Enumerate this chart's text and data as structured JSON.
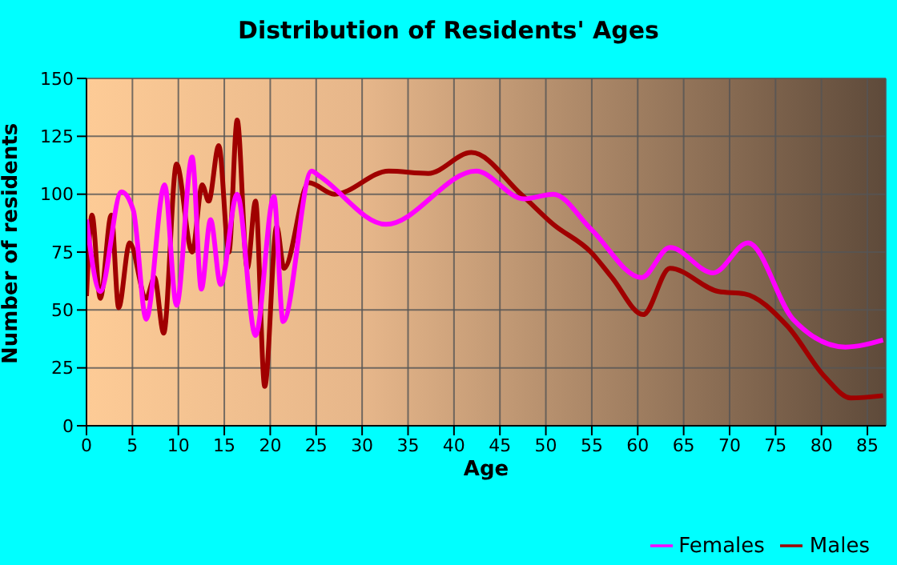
{
  "chart_data": {
    "type": "line",
    "title": "Distribution of Residents' Ages",
    "xlabel": "Age",
    "ylabel": "Number of residents",
    "xlim": [
      0,
      87
    ],
    "xticks": [
      0,
      5,
      10,
      15,
      20,
      25,
      30,
      35,
      40,
      45,
      50,
      55,
      60,
      65,
      70,
      75,
      80,
      85
    ],
    "ylim": [
      0,
      150
    ],
    "yticks": [
      0,
      25,
      50,
      75,
      100,
      125,
      150
    ],
    "grid": true,
    "legend": "bottom right",
    "marker": "none",
    "line_style": "solid",
    "series": [
      {
        "name": "Males",
        "color": "#a00000",
        "x": [
          0,
          0.6,
          1.5,
          2.7,
          3.5,
          4.7,
          6.5,
          7.4,
          8.4,
          9.8,
          11.5,
          12.6,
          13.3,
          14.4,
          15.5,
          16.4,
          17.5,
          18.4,
          19.4,
          20.7,
          21.5,
          24.2,
          27,
          32.9,
          37.2,
          41.9,
          47.3,
          50.8,
          54.9,
          57.2,
          60.6,
          63.5,
          68.8,
          71.6,
          76.3,
          80.4,
          83.2,
          86.7
        ],
        "values": [
          56,
          91,
          55,
          91,
          51,
          79,
          55,
          64,
          40,
          113,
          75,
          104,
          97,
          121,
          75,
          132,
          68,
          97,
          17,
          86,
          68,
          105,
          100,
          110,
          109,
          118,
          100,
          87,
          75,
          64,
          48,
          68,
          58,
          57,
          43,
          21,
          12,
          13
        ]
      },
      {
        "name": "Females",
        "color": "#ff00ff",
        "x": [
          0,
          1.5,
          3.8,
          5.1,
          6.5,
          8.5,
          9.8,
          11.5,
          12.5,
          13.5,
          14.6,
          16.4,
          18.4,
          20.4,
          21.4,
          24.5,
          25.3,
          32.6,
          42.4,
          47.6,
          50.8,
          54.9,
          60.4,
          63.5,
          68.2,
          72,
          76.9,
          82.6,
          86.7
        ],
        "values": [
          89,
          58,
          101,
          93,
          46,
          104,
          52,
          116,
          59,
          89,
          61,
          100,
          39,
          99,
          45,
          110,
          108,
          87,
          110,
          98,
          100,
          85,
          64,
          77,
          66,
          79,
          46,
          34,
          37
        ]
      }
    ]
  }
}
